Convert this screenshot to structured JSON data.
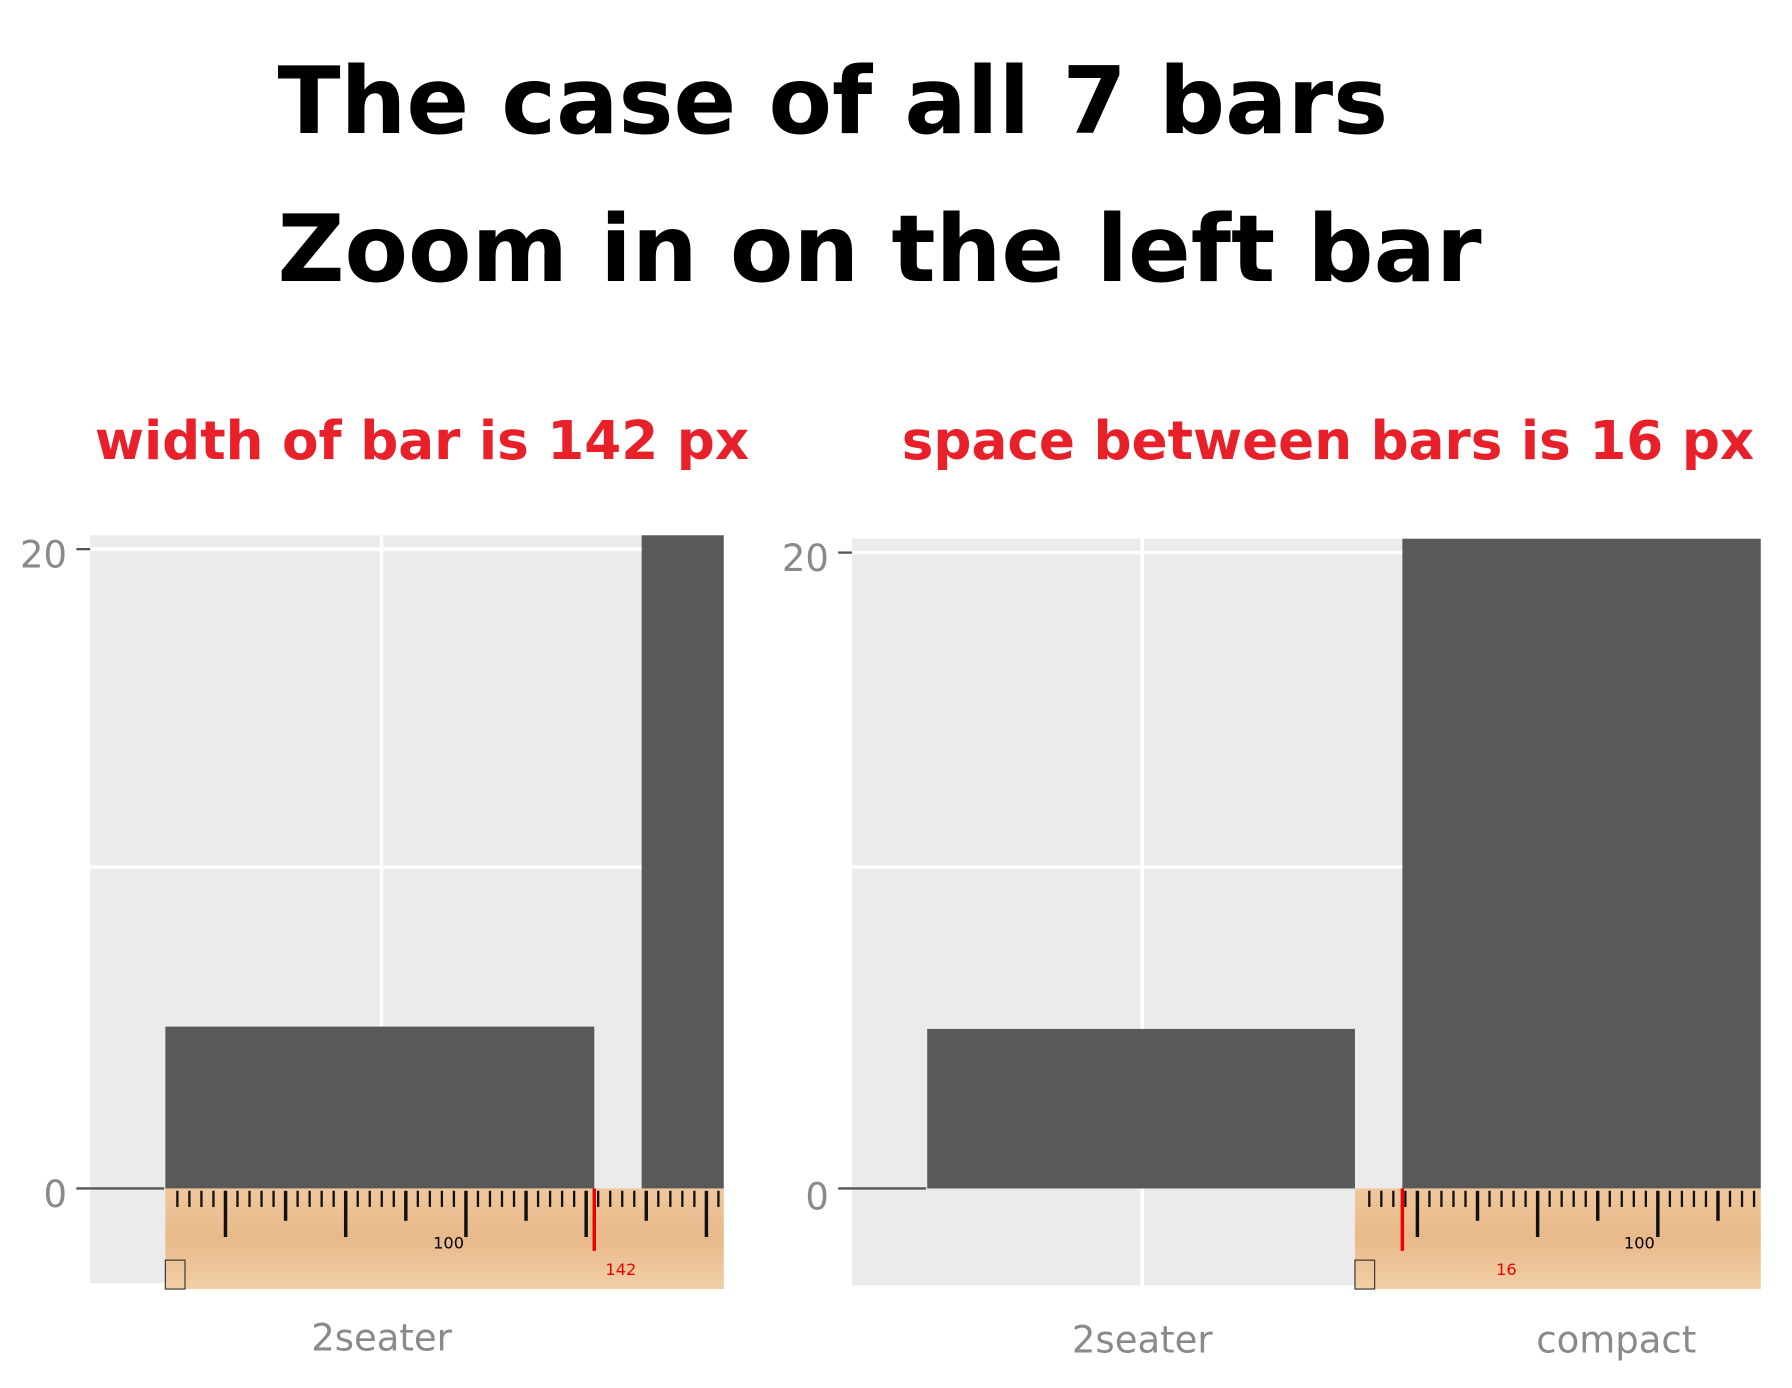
{
  "title": {
    "line1": "The case of all 7 bars",
    "line2": "Zoom in on the left bar"
  },
  "panels": [
    {
      "caption": "width of bar is 142 px",
      "y_ticks": [
        "20",
        "0"
      ],
      "x_labels": [
        "2seater"
      ],
      "ruler_labels": [
        "100",
        "142"
      ]
    },
    {
      "caption": "space between bars is 16 px",
      "y_ticks": [
        "20",
        "0"
      ],
      "x_labels": [
        "2seater",
        "compact"
      ],
      "ruler_labels": [
        "100",
        "16"
      ]
    }
  ]
}
